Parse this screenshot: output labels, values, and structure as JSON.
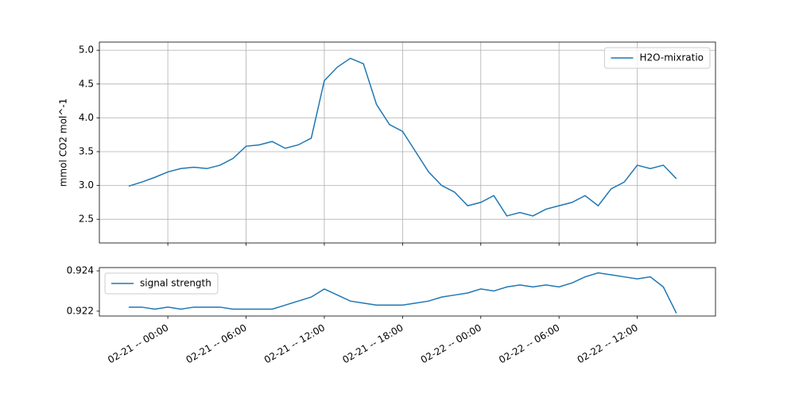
{
  "chart_data": [
    {
      "type": "line",
      "ylabel": "mmol CO2 mol^-1",
      "x": [
        "02-20 -- 21:00",
        "02-20 -- 22:00",
        "02-20 -- 23:00",
        "02-21 -- 00:00",
        "02-21 -- 01:00",
        "02-21 -- 02:00",
        "02-21 -- 03:00",
        "02-21 -- 04:00",
        "02-21 -- 05:00",
        "02-21 -- 06:00",
        "02-21 -- 07:00",
        "02-21 -- 08:00",
        "02-21 -- 09:00",
        "02-21 -- 10:00",
        "02-21 -- 11:00",
        "02-21 -- 12:00",
        "02-21 -- 13:00",
        "02-21 -- 14:00",
        "02-21 -- 15:00",
        "02-21 -- 16:00",
        "02-21 -- 17:00",
        "02-21 -- 18:00",
        "02-21 -- 19:00",
        "02-21 -- 20:00",
        "02-21 -- 21:00",
        "02-21 -- 22:00",
        "02-21 -- 23:00",
        "02-22 -- 00:00",
        "02-22 -- 01:00",
        "02-22 -- 02:00",
        "02-22 -- 03:00",
        "02-22 -- 04:00",
        "02-22 -- 05:00",
        "02-22 -- 06:00",
        "02-22 -- 07:00",
        "02-22 -- 08:00",
        "02-22 -- 09:00",
        "02-22 -- 10:00",
        "02-22 -- 11:00",
        "02-22 -- 12:00",
        "02-22 -- 13:00",
        "02-22 -- 14:00",
        "02-22 -- 15:00"
      ],
      "series": [
        {
          "name": "H2O-mixratio",
          "color": "#1f77b4",
          "values": [
            2.99,
            3.05,
            3.12,
            3.2,
            3.25,
            3.27,
            3.25,
            3.3,
            3.4,
            3.58,
            3.6,
            3.65,
            3.55,
            3.6,
            3.7,
            4.55,
            4.75,
            4.88,
            4.8,
            4.2,
            3.9,
            3.8,
            3.5,
            3.2,
            3.0,
            2.9,
            2.7,
            2.75,
            2.85,
            2.55,
            2.6,
            2.55,
            2.65,
            2.7,
            2.75,
            2.85,
            2.7,
            2.95,
            3.05,
            3.3,
            3.25,
            3.3,
            3.1
          ]
        }
      ],
      "ylim": [
        2.15,
        5.12
      ],
      "yticks": [
        {
          "value": 2.5,
          "label": "2.5"
        },
        {
          "value": 3,
          "label": "3.0"
        },
        {
          "value": 3.5,
          "label": "3.5"
        },
        {
          "value": 4,
          "label": "4.0"
        },
        {
          "value": 4.5,
          "label": "4.5"
        },
        {
          "value": 5,
          "label": "5.0"
        }
      ],
      "xlim": [
        "02-20 -- 18:45",
        "02-22 -- 18:00"
      ],
      "xticks": [
        "02-21 -- 00:00",
        "02-21 -- 06:00",
        "02-21 -- 12:00",
        "02-21 -- 18:00",
        "02-22 -- 00:00",
        "02-22 -- 06:00",
        "02-22 -- 12:00"
      ],
      "grid": true,
      "legend": "upper right",
      "show_xtick_labels": false
    },
    {
      "type": "line",
      "x": [
        "02-20 -- 21:00",
        "02-20 -- 22:00",
        "02-20 -- 23:00",
        "02-21 -- 00:00",
        "02-21 -- 01:00",
        "02-21 -- 02:00",
        "02-21 -- 03:00",
        "02-21 -- 04:00",
        "02-21 -- 05:00",
        "02-21 -- 06:00",
        "02-21 -- 07:00",
        "02-21 -- 08:00",
        "02-21 -- 09:00",
        "02-21 -- 10:00",
        "02-21 -- 11:00",
        "02-21 -- 12:00",
        "02-21 -- 13:00",
        "02-21 -- 14:00",
        "02-21 -- 15:00",
        "02-21 -- 16:00",
        "02-21 -- 17:00",
        "02-21 -- 18:00",
        "02-21 -- 19:00",
        "02-21 -- 20:00",
        "02-21 -- 21:00",
        "02-21 -- 22:00",
        "02-21 -- 23:00",
        "02-22 -- 00:00",
        "02-22 -- 01:00",
        "02-22 -- 02:00",
        "02-22 -- 03:00",
        "02-22 -- 04:00",
        "02-22 -- 05:00",
        "02-22 -- 06:00",
        "02-22 -- 07:00",
        "02-22 -- 08:00",
        "02-22 -- 09:00",
        "02-22 -- 10:00",
        "02-22 -- 11:00",
        "02-22 -- 12:00",
        "02-22 -- 13:00",
        "02-22 -- 14:00",
        "02-22 -- 15:00"
      ],
      "series": [
        {
          "name": "signal strength",
          "color": "#1f77b4",
          "values": [
            0.9222,
            0.9222,
            0.9221,
            0.9222,
            0.9221,
            0.9222,
            0.9222,
            0.9222,
            0.9221,
            0.9221,
            0.9221,
            0.9221,
            0.9223,
            0.9225,
            0.9227,
            0.9231,
            0.9228,
            0.9225,
            0.9224,
            0.9223,
            0.9223,
            0.9223,
            0.9224,
            0.9225,
            0.9227,
            0.9228,
            0.9229,
            0.9231,
            0.923,
            0.9232,
            0.9233,
            0.9232,
            0.9233,
            0.9232,
            0.9234,
            0.9237,
            0.9239,
            0.9238,
            0.9237,
            0.9236,
            0.9237,
            0.9232,
            0.9219
          ]
        }
      ],
      "ylim": [
        0.92176,
        0.92416
      ],
      "yticks": [
        0.922,
        0.924
      ],
      "xlim": [
        "02-20 -- 18:45",
        "02-22 -- 18:00"
      ],
      "xticks": [
        "02-21 -- 00:00",
        "02-21 -- 06:00",
        "02-21 -- 12:00",
        "02-21 -- 18:00",
        "02-22 -- 00:00",
        "02-22 -- 06:00",
        "02-22 -- 12:00"
      ],
      "grid": false,
      "legend": "upper left",
      "show_xtick_labels": true
    }
  ]
}
